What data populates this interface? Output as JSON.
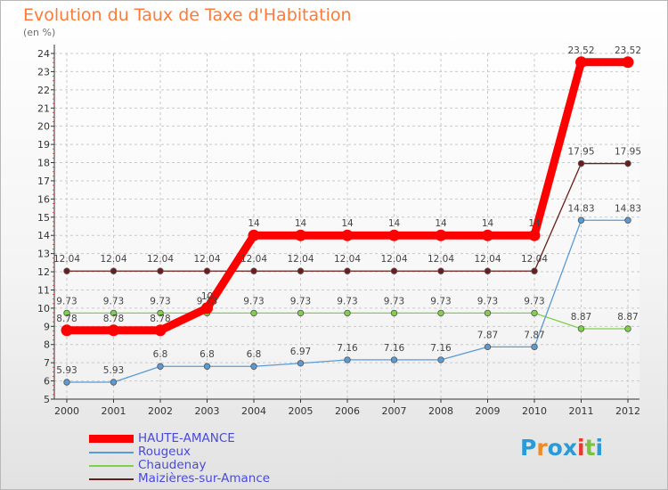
{
  "chart_data": {
    "type": "line",
    "title": "Evolution du Taux de Taxe d'Habitation",
    "subtitle": "(en %)",
    "x": [
      "2000",
      "2001",
      "2002",
      "2003",
      "2004",
      "2005",
      "2006",
      "2007",
      "2008",
      "2009",
      "2010",
      "2011",
      "2012"
    ],
    "ylim": [
      5,
      24
    ],
    "yticks": [
      5,
      6,
      7,
      8,
      9,
      10,
      11,
      12,
      13,
      14,
      15,
      16,
      17,
      18,
      19,
      20,
      21,
      22,
      23,
      24
    ],
    "grid": true,
    "legend_position": "bottom-left",
    "series": [
      {
        "name": "HAUTE-AMANCE",
        "color": "#ff0000",
        "values": [
          8.78,
          8.78,
          8.78,
          10,
          14,
          14,
          14,
          14,
          14,
          14,
          14,
          23.52,
          23.52
        ],
        "labels": [
          "8.78",
          "8.78",
          "8.78",
          "10",
          "14",
          "14",
          "14",
          "14",
          "14",
          "14",
          "14",
          "23.52",
          "23.52"
        ]
      },
      {
        "name": "Rougeux",
        "color": "#5b9bd5",
        "values": [
          5.93,
          5.93,
          6.8,
          6.8,
          6.8,
          6.97,
          7.16,
          7.16,
          7.16,
          7.87,
          7.87,
          14.83,
          14.83
        ],
        "labels": [
          "5.93",
          "5.93",
          "6.8",
          "6.8",
          "6.8",
          "6.97",
          "7.16",
          "7.16",
          "7.16",
          "7.87",
          "7.87",
          "14.83",
          "14.83"
        ]
      },
      {
        "name": "Chaudenay",
        "color": "#7fd147",
        "values": [
          9.73,
          9.73,
          9.73,
          9.73,
          9.73,
          9.73,
          9.73,
          9.73,
          9.73,
          9.73,
          9.73,
          8.87,
          8.87
        ],
        "labels": [
          "9.73",
          "9.73",
          "9.73",
          "9.73",
          "9.73",
          "9.73",
          "9.73",
          "9.73",
          "9.73",
          "9.73",
          "9.73",
          "8.87",
          "8.87"
        ]
      },
      {
        "name": "Maizières-sur-Amance",
        "color": "#6b1c1c",
        "values": [
          12.04,
          12.04,
          12.04,
          12.04,
          12.04,
          12.04,
          12.04,
          12.04,
          12.04,
          12.04,
          12.04,
          17.95,
          17.95
        ],
        "labels": [
          "12.04",
          "12.04",
          "12.04",
          "12.04",
          "12.04",
          "12.04",
          "12.04",
          "12.04",
          "12.04",
          "12.04",
          "12.04",
          "17.95",
          "17.95"
        ]
      }
    ]
  },
  "legend": {
    "items": [
      {
        "label": "HAUTE-AMANCE",
        "color": "#ff0000"
      },
      {
        "label": "Rougeux",
        "color": "#5b9bd5"
      },
      {
        "label": "Chaudenay",
        "color": "#7fd147"
      },
      {
        "label": "Maizières-sur-Amance",
        "color": "#6b1c1c"
      }
    ]
  },
  "logo": {
    "text": "Proxiti",
    "colors": [
      "#2a9bd8",
      "#f08a24",
      "#2a9bd8",
      "#2a9bd8",
      "#e8392f",
      "#7cc142",
      "#2a9bd8"
    ]
  }
}
